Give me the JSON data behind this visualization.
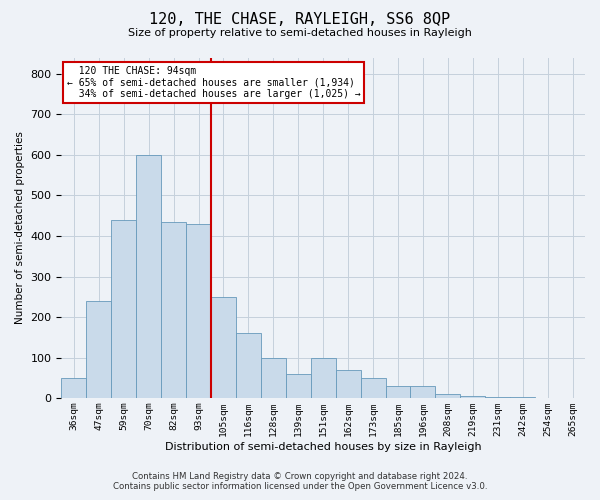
{
  "title": "120, THE CHASE, RAYLEIGH, SS6 8QP",
  "subtitle": "Size of property relative to semi-detached houses in Rayleigh",
  "xlabel": "Distribution of semi-detached houses by size in Rayleigh",
  "ylabel": "Number of semi-detached properties",
  "bar_labels": [
    "36sqm",
    "47sqm",
    "59sqm",
    "70sqm",
    "82sqm",
    "93sqm",
    "105sqm",
    "116sqm",
    "128sqm",
    "139sqm",
    "151sqm",
    "162sqm",
    "173sqm",
    "185sqm",
    "196sqm",
    "208sqm",
    "219sqm",
    "231sqm",
    "242sqm",
    "254sqm",
    "265sqm"
  ],
  "bar_values": [
    50,
    240,
    440,
    600,
    435,
    430,
    250,
    160,
    100,
    60,
    100,
    70,
    50,
    30,
    30,
    10,
    5,
    3,
    2,
    1,
    1
  ],
  "bar_color": "#c9daea",
  "bar_edge_color": "#6699bb",
  "property_label": "120 THE CHASE: 94sqm",
  "pct_smaller": 65,
  "pct_larger": 34,
  "count_smaller": 1934,
  "count_larger": 1025,
  "vline_color": "#cc0000",
  "vline_x_index": 5.5,
  "annotation_box_color": "#ffffff",
  "annotation_box_edge": "#cc0000",
  "footer_line1": "Contains HM Land Registry data © Crown copyright and database right 2024.",
  "footer_line2": "Contains public sector information licensed under the Open Government Licence v3.0.",
  "background_color": "#eef2f7",
  "ylim": [
    0,
    840
  ],
  "yticks": [
    0,
    100,
    200,
    300,
    400,
    500,
    600,
    700,
    800
  ],
  "grid_color": "#c5d0dc"
}
